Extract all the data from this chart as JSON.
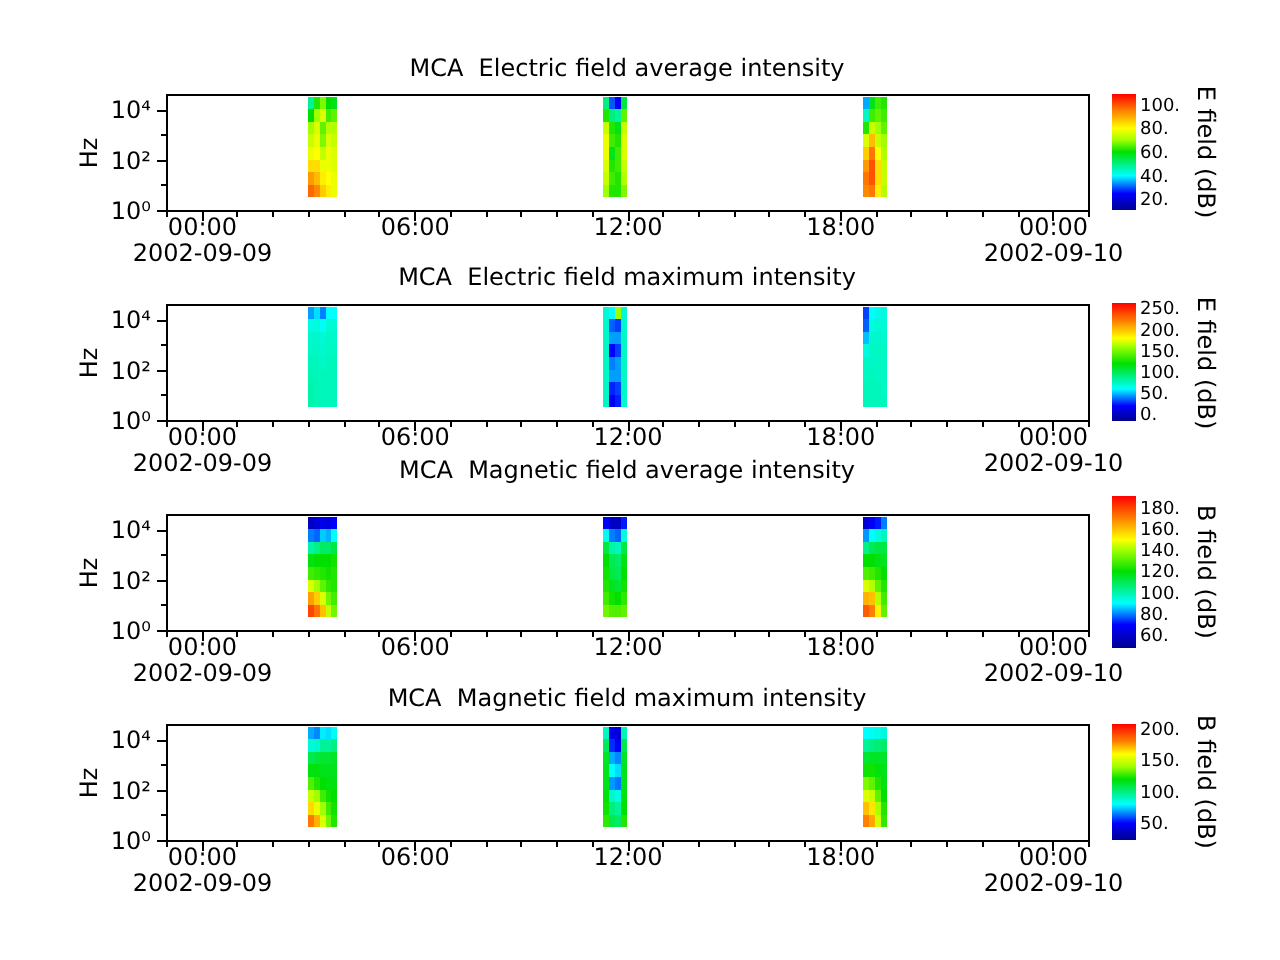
{
  "chart_data": [
    {
      "type": "scatter",
      "title": "MCA  Electric field average intensity",
      "ylabel": "Hz",
      "clabel": "E field (dB)",
      "log": "y",
      "marker": "square",
      "x": [
        "2002-09-09T03:05",
        "2002-09-09T03:15",
        "2002-09-09T03:25",
        "2002-09-09T03:35",
        "2002-09-09T03:45",
        "2002-09-09T11:25",
        "2002-09-09T11:35",
        "2002-09-09T11:45",
        "2002-09-09T11:55",
        "2002-09-09T18:45",
        "2002-09-09T18:55",
        "2002-09-09T19:05",
        "2002-09-09T19:15",
        "2002-09-09T03:05",
        "2002-09-09T03:15",
        "2002-09-09T03:25",
        "2002-09-09T03:35",
        "2002-09-09T03:45",
        "2002-09-09T11:25",
        "2002-09-09T11:35",
        "2002-09-09T11:45",
        "2002-09-09T11:55",
        "2002-09-09T18:45",
        "2002-09-09T18:55",
        "2002-09-09T19:05",
        "2002-09-09T19:15",
        "2002-09-09T03:05",
        "2002-09-09T03:15",
        "2002-09-09T03:25",
        "2002-09-09T03:35",
        "2002-09-09T03:45",
        "2002-09-09T11:25",
        "2002-09-09T11:35",
        "2002-09-09T11:45",
        "2002-09-09T11:55",
        "2002-09-09T18:45",
        "2002-09-09T18:55",
        "2002-09-09T19:05",
        "2002-09-09T19:15",
        "2002-09-09T03:05",
        "2002-09-09T03:15",
        "2002-09-09T03:25",
        "2002-09-09T03:35",
        "2002-09-09T03:45",
        "2002-09-09T11:25",
        "2002-09-09T11:35",
        "2002-09-09T11:45",
        "2002-09-09T11:55",
        "2002-09-09T18:45",
        "2002-09-09T18:55",
        "2002-09-09T19:05",
        "2002-09-09T19:15",
        "2002-09-09T03:05",
        "2002-09-09T03:15",
        "2002-09-09T03:25",
        "2002-09-09T03:35",
        "2002-09-09T03:45",
        "2002-09-09T11:25",
        "2002-09-09T11:35",
        "2002-09-09T11:45",
        "2002-09-09T11:55",
        "2002-09-09T18:45",
        "2002-09-09T18:55",
        "2002-09-09T19:05",
        "2002-09-09T19:15",
        "2002-09-09T03:05",
        "2002-09-09T03:15",
        "2002-09-09T03:25",
        "2002-09-09T03:35",
        "2002-09-09T03:45",
        "2002-09-09T11:25",
        "2002-09-09T11:35",
        "2002-09-09T11:45",
        "2002-09-09T11:55",
        "2002-09-09T18:45",
        "2002-09-09T18:55",
        "2002-09-09T19:05",
        "2002-09-09T19:15",
        "2002-09-09T03:05",
        "2002-09-09T03:15",
        "2002-09-09T03:25",
        "2002-09-09T03:35",
        "2002-09-09T03:45",
        "2002-09-09T11:25",
        "2002-09-09T11:35",
        "2002-09-09T11:45",
        "2002-09-09T11:55",
        "2002-09-09T18:45",
        "2002-09-09T18:55",
        "2002-09-09T19:05",
        "2002-09-09T19:15",
        "2002-09-09T03:05",
        "2002-09-09T03:15",
        "2002-09-09T03:25",
        "2002-09-09T03:35",
        "2002-09-09T03:45",
        "2002-09-09T11:25",
        "2002-09-09T11:35",
        "2002-09-09T11:45",
        "2002-09-09T11:55",
        "2002-09-09T18:45",
        "2002-09-09T18:55",
        "2002-09-09T19:05",
        "2002-09-09T19:15"
      ],
      "values": [
        17800,
        17800,
        17800,
        17800,
        17800,
        17800,
        17800,
        17800,
        17800,
        17800,
        17800,
        17800,
        17800,
        5620,
        5620,
        5620,
        5620,
        5620,
        5620,
        5620,
        5620,
        5620,
        5620,
        5620,
        5620,
        5620,
        1780,
        1780,
        1780,
        1780,
        1780,
        1780,
        1780,
        1780,
        1780,
        1780,
        1780,
        1780,
        1780,
        562,
        562,
        562,
        562,
        562,
        562,
        562,
        562,
        562,
        562,
        562,
        562,
        562,
        178,
        178,
        178,
        178,
        178,
        178,
        178,
        178,
        178,
        178,
        178,
        178,
        178,
        56.2,
        56.2,
        56.2,
        56.2,
        56.2,
        56.2,
        56.2,
        56.2,
        56.2,
        56.2,
        56.2,
        56.2,
        56.2,
        17.8,
        17.8,
        17.8,
        17.8,
        17.8,
        17.8,
        17.8,
        17.8,
        17.8,
        17.8,
        17.8,
        17.8,
        17.8,
        5.62,
        5.62,
        5.62,
        5.62,
        5.62,
        5.62,
        5.62,
        5.62,
        5.62,
        5.62,
        5.62,
        5.62,
        5.62
      ],
      "cvalues": [
        48,
        62,
        68,
        60,
        58,
        50,
        30,
        25,
        55,
        35,
        58,
        64,
        62,
        60,
        70,
        76,
        64,
        66,
        62,
        50,
        48,
        66,
        45,
        64,
        66,
        64,
        70,
        76,
        66,
        72,
        72,
        74,
        62,
        58,
        74,
        62,
        74,
        70,
        66,
        74,
        78,
        68,
        76,
        74,
        78,
        64,
        62,
        76,
        76,
        88,
        74,
        70,
        78,
        80,
        74,
        78,
        76,
        78,
        58,
        64,
        76,
        86,
        96,
        80,
        72,
        84,
        84,
        78,
        78,
        76,
        76,
        62,
        64,
        74,
        92,
        100,
        84,
        74,
        92,
        88,
        82,
        80,
        78,
        74,
        64,
        62,
        72,
        96,
        100,
        84,
        74,
        98,
        94,
        86,
        82,
        78,
        70,
        62,
        62,
        68,
        94,
        96,
        82,
        72
      ],
      "clim": [
        11,
        109
      ],
      "cticks": [
        {
          "value": 20,
          "label": "20."
        },
        {
          "value": 40,
          "label": "40."
        },
        {
          "value": 60,
          "label": "60."
        },
        {
          "value": 80,
          "label": "80."
        },
        {
          "value": 100,
          "label": "100."
        }
      ],
      "xlim": [
        "2002-09-08T23:00",
        "2002-09-10T01:00"
      ],
      "xticks": [
        {
          "value": "2002-09-08T23:00",
          "label": null
        },
        {
          "value": "2002-09-09T00:00",
          "label": "00:00\n2002-09-09"
        },
        {
          "value": "2002-09-09T01:00",
          "label": null
        },
        {
          "value": "2002-09-09T02:00",
          "label": null
        },
        {
          "value": "2002-09-09T03:00",
          "label": null
        },
        {
          "value": "2002-09-09T04:00",
          "label": null
        },
        {
          "value": "2002-09-09T05:00",
          "label": null
        },
        {
          "value": "2002-09-09T06:00",
          "label": "06:00"
        },
        {
          "value": "2002-09-09T07:00",
          "label": null
        },
        {
          "value": "2002-09-09T08:00",
          "label": null
        },
        {
          "value": "2002-09-09T09:00",
          "label": null
        },
        {
          "value": "2002-09-09T10:00",
          "label": null
        },
        {
          "value": "2002-09-09T11:00",
          "label": null
        },
        {
          "value": "2002-09-09T12:00",
          "label": "12:00"
        },
        {
          "value": "2002-09-09T13:00",
          "label": null
        },
        {
          "value": "2002-09-09T14:00",
          "label": null
        },
        {
          "value": "2002-09-09T15:00",
          "label": null
        },
        {
          "value": "2002-09-09T16:00",
          "label": null
        },
        {
          "value": "2002-09-09T17:00",
          "label": null
        },
        {
          "value": "2002-09-09T18:00",
          "label": "18:00"
        },
        {
          "value": "2002-09-09T19:00",
          "label": null
        },
        {
          "value": "2002-09-09T20:00",
          "label": null
        },
        {
          "value": "2002-09-09T21:00",
          "label": null
        },
        {
          "value": "2002-09-09T22:00",
          "label": null
        },
        {
          "value": "2002-09-09T23:00",
          "label": null
        },
        {
          "value": "2002-09-10T00:00",
          "label": "00:00\n2002-09-10"
        },
        {
          "value": "2002-09-10T01:00",
          "label": null
        }
      ],
      "ylim": [
        1,
        40000
      ],
      "yticks": [
        {
          "value": 1,
          "label": "10⁰"
        },
        {
          "value": 10,
          "label": null
        },
        {
          "value": 100,
          "label": "10²"
        },
        {
          "value": 1000,
          "label": null
        },
        {
          "value": 10000,
          "label": "10⁴"
        }
      ]
    },
    {
      "type": "scatter",
      "title": "MCA  Electric field maximum intensity",
      "ylabel": "Hz",
      "clabel": "E field (dB)",
      "log": "y",
      "marker": "square",
      "x": [
        "2002-09-09T03:05",
        "2002-09-09T03:15",
        "2002-09-09T03:25",
        "2002-09-09T03:35",
        "2002-09-09T03:45",
        "2002-09-09T11:25",
        "2002-09-09T11:35",
        "2002-09-09T11:45",
        "2002-09-09T11:55",
        "2002-09-09T18:45",
        "2002-09-09T18:55",
        "2002-09-09T19:05",
        "2002-09-09T19:15",
        "2002-09-09T03:05",
        "2002-09-09T03:15",
        "2002-09-09T03:25",
        "2002-09-09T03:35",
        "2002-09-09T03:45",
        "2002-09-09T11:25",
        "2002-09-09T11:35",
        "2002-09-09T11:45",
        "2002-09-09T11:55",
        "2002-09-09T18:45",
        "2002-09-09T18:55",
        "2002-09-09T19:05",
        "2002-09-09T19:15",
        "2002-09-09T03:05",
        "2002-09-09T03:15",
        "2002-09-09T03:25",
        "2002-09-09T03:35",
        "2002-09-09T03:45",
        "2002-09-09T11:25",
        "2002-09-09T11:35",
        "2002-09-09T11:45",
        "2002-09-09T11:55",
        "2002-09-09T18:45",
        "2002-09-09T18:55",
        "2002-09-09T19:05",
        "2002-09-09T19:15",
        "2002-09-09T03:05",
        "2002-09-09T03:15",
        "2002-09-09T03:25",
        "2002-09-09T03:35",
        "2002-09-09T03:45",
        "2002-09-09T11:25",
        "2002-09-09T11:35",
        "2002-09-09T11:45",
        "2002-09-09T11:55",
        "2002-09-09T18:45",
        "2002-09-09T18:55",
        "2002-09-09T19:05",
        "2002-09-09T19:15",
        "2002-09-09T03:05",
        "2002-09-09T03:15",
        "2002-09-09T03:25",
        "2002-09-09T03:35",
        "2002-09-09T03:45",
        "2002-09-09T11:25",
        "2002-09-09T11:35",
        "2002-09-09T11:45",
        "2002-09-09T11:55",
        "2002-09-09T18:45",
        "2002-09-09T18:55",
        "2002-09-09T19:05",
        "2002-09-09T19:15",
        "2002-09-09T03:05",
        "2002-09-09T03:15",
        "2002-09-09T03:25",
        "2002-09-09T03:35",
        "2002-09-09T03:45",
        "2002-09-09T11:25",
        "2002-09-09T11:35",
        "2002-09-09T11:45",
        "2002-09-09T11:55",
        "2002-09-09T18:45",
        "2002-09-09T18:55",
        "2002-09-09T19:05",
        "2002-09-09T19:15",
        "2002-09-09T03:05",
        "2002-09-09T03:15",
        "2002-09-09T03:25",
        "2002-09-09T03:35",
        "2002-09-09T03:45",
        "2002-09-09T11:25",
        "2002-09-09T11:35",
        "2002-09-09T11:45",
        "2002-09-09T11:55",
        "2002-09-09T18:45",
        "2002-09-09T18:55",
        "2002-09-09T19:05",
        "2002-09-09T19:15",
        "2002-09-09T03:05",
        "2002-09-09T03:15",
        "2002-09-09T03:25",
        "2002-09-09T03:35",
        "2002-09-09T03:45",
        "2002-09-09T11:25",
        "2002-09-09T11:35",
        "2002-09-09T11:45",
        "2002-09-09T11:55",
        "2002-09-09T18:45",
        "2002-09-09T18:55",
        "2002-09-09T19:05",
        "2002-09-09T19:15"
      ],
      "values": [
        17800,
        17800,
        17800,
        17800,
        17800,
        17800,
        17800,
        17800,
        17800,
        17800,
        17800,
        17800,
        17800,
        5620,
        5620,
        5620,
        5620,
        5620,
        5620,
        5620,
        5620,
        5620,
        5620,
        5620,
        5620,
        5620,
        1780,
        1780,
        1780,
        1780,
        1780,
        1780,
        1780,
        1780,
        1780,
        1780,
        1780,
        1780,
        1780,
        562,
        562,
        562,
        562,
        562,
        562,
        562,
        562,
        562,
        562,
        562,
        562,
        562,
        178,
        178,
        178,
        178,
        178,
        178,
        178,
        178,
        178,
        178,
        178,
        178,
        178,
        56.2,
        56.2,
        56.2,
        56.2,
        56.2,
        56.2,
        56.2,
        56.2,
        56.2,
        56.2,
        56.2,
        56.2,
        56.2,
        17.8,
        17.8,
        17.8,
        17.8,
        17.8,
        17.8,
        17.8,
        17.8,
        17.8,
        17.8,
        17.8,
        17.8,
        17.8,
        5.62,
        5.62,
        5.62,
        5.62,
        5.62,
        5.62,
        5.62,
        5.62,
        5.62,
        5.62,
        5.62,
        5.62,
        5.62
      ],
      "cvalues": [
        45,
        55,
        40,
        60,
        60,
        70,
        60,
        160,
        70,
        30,
        60,
        66,
        68,
        66,
        68,
        62,
        70,
        70,
        72,
        35,
        30,
        72,
        35,
        68,
        70,
        70,
        72,
        72,
        70,
        74,
        72,
        74,
        45,
        45,
        74,
        50,
        72,
        72,
        72,
        74,
        74,
        72,
        74,
        74,
        74,
        20,
        30,
        74,
        68,
        74,
        74,
        74,
        76,
        76,
        74,
        76,
        76,
        74,
        40,
        45,
        74,
        74,
        74,
        74,
        74,
        78,
        76,
        76,
        76,
        76,
        74,
        45,
        45,
        74,
        74,
        76,
        74,
        74,
        80,
        78,
        76,
        76,
        76,
        74,
        25,
        30,
        74,
        76,
        76,
        76,
        74,
        80,
        78,
        76,
        76,
        76,
        74,
        15,
        25,
        72,
        76,
        76,
        76,
        76
      ],
      "clim": [
        -16,
        263
      ],
      "cticks": [
        {
          "value": 0,
          "label": "0."
        },
        {
          "value": 50,
          "label": "50."
        },
        {
          "value": 100,
          "label": "100."
        },
        {
          "value": 150,
          "label": "150."
        },
        {
          "value": 200,
          "label": "200."
        },
        {
          "value": 250,
          "label": "250."
        }
      ],
      "xlim": [
        "2002-09-08T23:00",
        "2002-09-10T01:00"
      ],
      "xticks": [
        {
          "value": "2002-09-08T23:00",
          "label": null
        },
        {
          "value": "2002-09-09T00:00",
          "label": "00:00\n2002-09-09"
        },
        {
          "value": "2002-09-09T01:00",
          "label": null
        },
        {
          "value": "2002-09-09T02:00",
          "label": null
        },
        {
          "value": "2002-09-09T03:00",
          "label": null
        },
        {
          "value": "2002-09-09T04:00",
          "label": null
        },
        {
          "value": "2002-09-09T05:00",
          "label": null
        },
        {
          "value": "2002-09-09T06:00",
          "label": "06:00"
        },
        {
          "value": "2002-09-09T07:00",
          "label": null
        },
        {
          "value": "2002-09-09T08:00",
          "label": null
        },
        {
          "value": "2002-09-09T09:00",
          "label": null
        },
        {
          "value": "2002-09-09T10:00",
          "label": null
        },
        {
          "value": "2002-09-09T11:00",
          "label": null
        },
        {
          "value": "2002-09-09T12:00",
          "label": "12:00"
        },
        {
          "value": "2002-09-09T13:00",
          "label": null
        },
        {
          "value": "2002-09-09T14:00",
          "label": null
        },
        {
          "value": "2002-09-09T15:00",
          "label": null
        },
        {
          "value": "2002-09-09T16:00",
          "label": null
        },
        {
          "value": "2002-09-09T17:00",
          "label": null
        },
        {
          "value": "2002-09-09T18:00",
          "label": "18:00"
        },
        {
          "value": "2002-09-09T19:00",
          "label": null
        },
        {
          "value": "2002-09-09T20:00",
          "label": null
        },
        {
          "value": "2002-09-09T21:00",
          "label": null
        },
        {
          "value": "2002-09-09T22:00",
          "label": null
        },
        {
          "value": "2002-09-09T23:00",
          "label": null
        },
        {
          "value": "2002-09-10T00:00",
          "label": "00:00\n2002-09-10"
        },
        {
          "value": "2002-09-10T01:00",
          "label": null
        }
      ],
      "ylim": [
        1,
        40000
      ],
      "yticks": [
        {
          "value": 1,
          "label": "10⁰"
        },
        {
          "value": 10,
          "label": null
        },
        {
          "value": 100,
          "label": "10²"
        },
        {
          "value": 1000,
          "label": null
        },
        {
          "value": 10000,
          "label": "10⁴"
        }
      ]
    },
    {
      "type": "scatter",
      "title": "MCA  Magnetic field average intensity",
      "ylabel": "Hz",
      "clabel": "B field (dB)",
      "log": "y",
      "marker": "square",
      "x": [
        "2002-09-09T03:05",
        "2002-09-09T03:15",
        "2002-09-09T03:25",
        "2002-09-09T03:35",
        "2002-09-09T03:45",
        "2002-09-09T11:25",
        "2002-09-09T11:35",
        "2002-09-09T11:45",
        "2002-09-09T11:55",
        "2002-09-09T18:45",
        "2002-09-09T18:55",
        "2002-09-09T19:05",
        "2002-09-09T19:15",
        "2002-09-09T03:05",
        "2002-09-09T03:15",
        "2002-09-09T03:25",
        "2002-09-09T03:35",
        "2002-09-09T03:45",
        "2002-09-09T11:25",
        "2002-09-09T11:35",
        "2002-09-09T11:45",
        "2002-09-09T11:55",
        "2002-09-09T18:45",
        "2002-09-09T18:55",
        "2002-09-09T19:05",
        "2002-09-09T19:15",
        "2002-09-09T03:05",
        "2002-09-09T03:15",
        "2002-09-09T03:25",
        "2002-09-09T03:35",
        "2002-09-09T03:45",
        "2002-09-09T11:25",
        "2002-09-09T11:35",
        "2002-09-09T11:45",
        "2002-09-09T11:55",
        "2002-09-09T18:45",
        "2002-09-09T18:55",
        "2002-09-09T19:05",
        "2002-09-09T19:15",
        "2002-09-09T03:05",
        "2002-09-09T03:15",
        "2002-09-09T03:25",
        "2002-09-09T03:35",
        "2002-09-09T03:45",
        "2002-09-09T11:25",
        "2002-09-09T11:35",
        "2002-09-09T11:45",
        "2002-09-09T11:55",
        "2002-09-09T18:45",
        "2002-09-09T18:55",
        "2002-09-09T19:05",
        "2002-09-09T19:15",
        "2002-09-09T03:05",
        "2002-09-09T03:15",
        "2002-09-09T03:25",
        "2002-09-09T03:35",
        "2002-09-09T03:45",
        "2002-09-09T11:25",
        "2002-09-09T11:35",
        "2002-09-09T11:45",
        "2002-09-09T11:55",
        "2002-09-09T18:45",
        "2002-09-09T18:55",
        "2002-09-09T19:05",
        "2002-09-09T19:15",
        "2002-09-09T03:05",
        "2002-09-09T03:15",
        "2002-09-09T03:25",
        "2002-09-09T03:35",
        "2002-09-09T03:45",
        "2002-09-09T11:25",
        "2002-09-09T11:35",
        "2002-09-09T11:45",
        "2002-09-09T11:55",
        "2002-09-09T18:45",
        "2002-09-09T18:55",
        "2002-09-09T19:05",
        "2002-09-09T19:15",
        "2002-09-09T03:05",
        "2002-09-09T03:15",
        "2002-09-09T03:25",
        "2002-09-09T03:35",
        "2002-09-09T03:45",
        "2002-09-09T11:25",
        "2002-09-09T11:35",
        "2002-09-09T11:45",
        "2002-09-09T11:55",
        "2002-09-09T18:45",
        "2002-09-09T18:55",
        "2002-09-09T19:05",
        "2002-09-09T19:15",
        "2002-09-09T03:05",
        "2002-09-09T03:15",
        "2002-09-09T03:25",
        "2002-09-09T03:35",
        "2002-09-09T03:45",
        "2002-09-09T11:25",
        "2002-09-09T11:35",
        "2002-09-09T11:45",
        "2002-09-09T11:55",
        "2002-09-09T18:45",
        "2002-09-09T18:55",
        "2002-09-09T19:05",
        "2002-09-09T19:15"
      ],
      "values": [
        17800,
        17800,
        17800,
        17800,
        17800,
        17800,
        17800,
        17800,
        17800,
        17800,
        17800,
        17800,
        17800,
        5620,
        5620,
        5620,
        5620,
        5620,
        5620,
        5620,
        5620,
        5620,
        5620,
        5620,
        5620,
        5620,
        1780,
        1780,
        1780,
        1780,
        1780,
        1780,
        1780,
        1780,
        1780,
        1780,
        1780,
        1780,
        1780,
        562,
        562,
        562,
        562,
        562,
        562,
        562,
        562,
        562,
        562,
        562,
        562,
        562,
        178,
        178,
        178,
        178,
        178,
        178,
        178,
        178,
        178,
        178,
        178,
        178,
        178,
        56.2,
        56.2,
        56.2,
        56.2,
        56.2,
        56.2,
        56.2,
        56.2,
        56.2,
        56.2,
        56.2,
        56.2,
        56.2,
        17.8,
        17.8,
        17.8,
        17.8,
        17.8,
        17.8,
        17.8,
        17.8,
        17.8,
        17.8,
        17.8,
        17.8,
        17.8,
        5.62,
        5.62,
        5.62,
        5.62,
        5.62,
        5.62,
        5.62,
        5.62,
        5.62,
        5.62,
        5.62,
        5.62,
        5.62
      ],
      "cvalues": [
        58,
        62,
        66,
        64,
        70,
        70,
        58,
        58,
        72,
        62,
        70,
        72,
        80,
        80,
        78,
        86,
        84,
        90,
        92,
        80,
        78,
        94,
        82,
        90,
        94,
        98,
        100,
        104,
        108,
        108,
        112,
        112,
        100,
        98,
        112,
        104,
        110,
        112,
        112,
        118,
        120,
        120,
        120,
        122,
        120,
        110,
        108,
        118,
        120,
        120,
        118,
        116,
        128,
        126,
        124,
        122,
        124,
        122,
        112,
        110,
        120,
        130,
        128,
        124,
        120,
        146,
        140,
        132,
        126,
        124,
        124,
        116,
        114,
        122,
        146,
        142,
        132,
        124,
        165,
        158,
        146,
        134,
        128,
        128,
        122,
        120,
        126,
        162,
        160,
        142,
        128,
        180,
        172,
        160,
        144,
        134,
        134,
        130,
        130,
        132,
        176,
        170,
        152,
        132
      ],
      "clim": [
        48,
        191
      ],
      "cticks": [
        {
          "value": 60,
          "label": "60."
        },
        {
          "value": 80,
          "label": "80."
        },
        {
          "value": 100,
          "label": "100."
        },
        {
          "value": 120,
          "label": "120."
        },
        {
          "value": 140,
          "label": "140."
        },
        {
          "value": 160,
          "label": "160."
        },
        {
          "value": 180,
          "label": "180."
        }
      ],
      "xlim": [
        "2002-09-08T23:00",
        "2002-09-10T01:00"
      ],
      "xticks": [
        {
          "value": "2002-09-08T23:00",
          "label": null
        },
        {
          "value": "2002-09-09T00:00",
          "label": "00:00\n2002-09-09"
        },
        {
          "value": "2002-09-09T01:00",
          "label": null
        },
        {
          "value": "2002-09-09T02:00",
          "label": null
        },
        {
          "value": "2002-09-09T03:00",
          "label": null
        },
        {
          "value": "2002-09-09T04:00",
          "label": null
        },
        {
          "value": "2002-09-09T05:00",
          "label": null
        },
        {
          "value": "2002-09-09T06:00",
          "label": "06:00"
        },
        {
          "value": "2002-09-09T07:00",
          "label": null
        },
        {
          "value": "2002-09-09T08:00",
          "label": null
        },
        {
          "value": "2002-09-09T09:00",
          "label": null
        },
        {
          "value": "2002-09-09T10:00",
          "label": null
        },
        {
          "value": "2002-09-09T11:00",
          "label": null
        },
        {
          "value": "2002-09-09T12:00",
          "label": "12:00"
        },
        {
          "value": "2002-09-09T13:00",
          "label": null
        },
        {
          "value": "2002-09-09T14:00",
          "label": null
        },
        {
          "value": "2002-09-09T15:00",
          "label": null
        },
        {
          "value": "2002-09-09T16:00",
          "label": null
        },
        {
          "value": "2002-09-09T17:00",
          "label": null
        },
        {
          "value": "2002-09-09T18:00",
          "label": "18:00"
        },
        {
          "value": "2002-09-09T19:00",
          "label": null
        },
        {
          "value": "2002-09-09T20:00",
          "label": null
        },
        {
          "value": "2002-09-09T21:00",
          "label": null
        },
        {
          "value": "2002-09-09T22:00",
          "label": null
        },
        {
          "value": "2002-09-09T23:00",
          "label": null
        },
        {
          "value": "2002-09-10T00:00",
          "label": "00:00\n2002-09-10"
        },
        {
          "value": "2002-09-10T01:00",
          "label": null
        }
      ],
      "ylim": [
        1,
        40000
      ],
      "yticks": [
        {
          "value": 1,
          "label": "10⁰"
        },
        {
          "value": 10,
          "label": null
        },
        {
          "value": 100,
          "label": "10²"
        },
        {
          "value": 1000,
          "label": null
        },
        {
          "value": 10000,
          "label": "10⁴"
        }
      ]
    },
    {
      "type": "scatter",
      "title": "MCA  Magnetic field maximum intensity",
      "ylabel": "Hz",
      "clabel": "B field (dB)",
      "log": "y",
      "marker": "square",
      "x": [
        "2002-09-09T03:05",
        "2002-09-09T03:15",
        "2002-09-09T03:25",
        "2002-09-09T03:35",
        "2002-09-09T03:45",
        "2002-09-09T11:25",
        "2002-09-09T11:35",
        "2002-09-09T11:45",
        "2002-09-09T11:55",
        "2002-09-09T18:45",
        "2002-09-09T18:55",
        "2002-09-09T19:05",
        "2002-09-09T19:15",
        "2002-09-09T03:05",
        "2002-09-09T03:15",
        "2002-09-09T03:25",
        "2002-09-09T03:35",
        "2002-09-09T03:45",
        "2002-09-09T11:25",
        "2002-09-09T11:35",
        "2002-09-09T11:45",
        "2002-09-09T11:55",
        "2002-09-09T18:45",
        "2002-09-09T18:55",
        "2002-09-09T19:05",
        "2002-09-09T19:15",
        "2002-09-09T03:05",
        "2002-09-09T03:15",
        "2002-09-09T03:25",
        "2002-09-09T03:35",
        "2002-09-09T03:45",
        "2002-09-09T11:25",
        "2002-09-09T11:35",
        "2002-09-09T11:45",
        "2002-09-09T11:55",
        "2002-09-09T18:45",
        "2002-09-09T18:55",
        "2002-09-09T19:05",
        "2002-09-09T19:15",
        "2002-09-09T03:05",
        "2002-09-09T03:15",
        "2002-09-09T03:25",
        "2002-09-09T03:35",
        "2002-09-09T03:45",
        "2002-09-09T11:25",
        "2002-09-09T11:35",
        "2002-09-09T11:45",
        "2002-09-09T11:55",
        "2002-09-09T18:45",
        "2002-09-09T18:55",
        "2002-09-09T19:05",
        "2002-09-09T19:15",
        "2002-09-09T03:05",
        "2002-09-09T03:15",
        "2002-09-09T03:25",
        "2002-09-09T03:35",
        "2002-09-09T03:45",
        "2002-09-09T11:25",
        "2002-09-09T11:35",
        "2002-09-09T11:45",
        "2002-09-09T11:55",
        "2002-09-09T18:45",
        "2002-09-09T18:55",
        "2002-09-09T19:05",
        "2002-09-09T19:15",
        "2002-09-09T03:05",
        "2002-09-09T03:15",
        "2002-09-09T03:25",
        "2002-09-09T03:35",
        "2002-09-09T03:45",
        "2002-09-09T11:25",
        "2002-09-09T11:35",
        "2002-09-09T11:45",
        "2002-09-09T11:55",
        "2002-09-09T18:45",
        "2002-09-09T18:55",
        "2002-09-09T19:05",
        "2002-09-09T19:15",
        "2002-09-09T03:05",
        "2002-09-09T03:15",
        "2002-09-09T03:25",
        "2002-09-09T03:35",
        "2002-09-09T03:45",
        "2002-09-09T11:25",
        "2002-09-09T11:35",
        "2002-09-09T11:45",
        "2002-09-09T11:55",
        "2002-09-09T18:45",
        "2002-09-09T18:55",
        "2002-09-09T19:05",
        "2002-09-09T19:15",
        "2002-09-09T03:05",
        "2002-09-09T03:15",
        "2002-09-09T03:25",
        "2002-09-09T03:35",
        "2002-09-09T03:45",
        "2002-09-09T11:25",
        "2002-09-09T11:35",
        "2002-09-09T11:45",
        "2002-09-09T11:55",
        "2002-09-09T18:45",
        "2002-09-09T18:55",
        "2002-09-09T19:05",
        "2002-09-09T19:15"
      ],
      "values": [
        17800,
        17800,
        17800,
        17800,
        17800,
        17800,
        17800,
        17800,
        17800,
        17800,
        17800,
        17800,
        17800,
        5620,
        5620,
        5620,
        5620,
        5620,
        5620,
        5620,
        5620,
        5620,
        5620,
        5620,
        5620,
        5620,
        1780,
        1780,
        1780,
        1780,
        1780,
        1780,
        1780,
        1780,
        1780,
        1780,
        1780,
        1780,
        1780,
        562,
        562,
        562,
        562,
        562,
        562,
        562,
        562,
        562,
        562,
        562,
        562,
        562,
        178,
        178,
        178,
        178,
        178,
        178,
        178,
        178,
        178,
        178,
        178,
        178,
        178,
        56.2,
        56.2,
        56.2,
        56.2,
        56.2,
        56.2,
        56.2,
        56.2,
        56.2,
        56.2,
        56.2,
        56.2,
        56.2,
        17.8,
        17.8,
        17.8,
        17.8,
        17.8,
        17.8,
        17.8,
        17.8,
        17.8,
        17.8,
        17.8,
        17.8,
        17.8,
        5.62,
        5.62,
        5.62,
        5.62,
        5.62,
        5.62,
        5.62,
        5.62,
        5.62,
        5.62,
        5.62,
        5.62,
        5.62
      ],
      "cvalues": [
        70,
        66,
        78,
        76,
        82,
        90,
        45,
        40,
        92,
        80,
        82,
        84,
        86,
        86,
        88,
        96,
        96,
        100,
        106,
        55,
        50,
        108,
        96,
        100,
        102,
        104,
        108,
        110,
        112,
        112,
        114,
        114,
        70,
        66,
        114,
        112,
        114,
        114,
        114,
        118,
        118,
        116,
        116,
        116,
        116,
        80,
        76,
        116,
        122,
        122,
        118,
        116,
        130,
        124,
        120,
        118,
        118,
        116,
        68,
        64,
        116,
        136,
        132,
        124,
        118,
        148,
        140,
        128,
        122,
        120,
        118,
        88,
        84,
        118,
        152,
        148,
        132,
        120,
        166,
        156,
        140,
        128,
        122,
        122,
        100,
        96,
        120,
        170,
        164,
        142,
        124,
        182,
        172,
        152,
        134,
        124,
        126,
        108,
        104,
        124,
        180,
        174,
        150,
        126
      ],
      "clim": [
        23,
        208
      ],
      "cticks": [
        {
          "value": 50,
          "label": "50."
        },
        {
          "value": 100,
          "label": "100."
        },
        {
          "value": 150,
          "label": "150."
        },
        {
          "value": 200,
          "label": "200."
        }
      ],
      "xlim": [
        "2002-09-08T23:00",
        "2002-09-10T01:00"
      ],
      "xticks": [
        {
          "value": "2002-09-08T23:00",
          "label": null
        },
        {
          "value": "2002-09-09T00:00",
          "label": "00:00\n2002-09-09"
        },
        {
          "value": "2002-09-09T01:00",
          "label": null
        },
        {
          "value": "2002-09-09T02:00",
          "label": null
        },
        {
          "value": "2002-09-09T03:00",
          "label": null
        },
        {
          "value": "2002-09-09T04:00",
          "label": null
        },
        {
          "value": "2002-09-09T05:00",
          "label": null
        },
        {
          "value": "2002-09-09T06:00",
          "label": "06:00"
        },
        {
          "value": "2002-09-09T07:00",
          "label": null
        },
        {
          "value": "2002-09-09T08:00",
          "label": null
        },
        {
          "value": "2002-09-09T09:00",
          "label": null
        },
        {
          "value": "2002-09-09T10:00",
          "label": null
        },
        {
          "value": "2002-09-09T11:00",
          "label": null
        },
        {
          "value": "2002-09-09T12:00",
          "label": "12:00"
        },
        {
          "value": "2002-09-09T13:00",
          "label": null
        },
        {
          "value": "2002-09-09T14:00",
          "label": null
        },
        {
          "value": "2002-09-09T15:00",
          "label": null
        },
        {
          "value": "2002-09-09T16:00",
          "label": null
        },
        {
          "value": "2002-09-09T17:00",
          "label": null
        },
        {
          "value": "2002-09-09T18:00",
          "label": "18:00"
        },
        {
          "value": "2002-09-09T19:00",
          "label": null
        },
        {
          "value": "2002-09-09T20:00",
          "label": null
        },
        {
          "value": "2002-09-09T21:00",
          "label": null
        },
        {
          "value": "2002-09-09T22:00",
          "label": null
        },
        {
          "value": "2002-09-09T23:00",
          "label": null
        },
        {
          "value": "2002-09-10T00:00",
          "label": "00:00\n2002-09-10"
        },
        {
          "value": "2002-09-10T01:00",
          "label": null
        }
      ],
      "ylim": [
        1,
        40000
      ],
      "yticks": [
        {
          "value": 1,
          "label": "10⁰"
        },
        {
          "value": 10,
          "label": null
        },
        {
          "value": 100,
          "label": "10²"
        },
        {
          "value": 1000,
          "label": null
        },
        {
          "value": 10000,
          "label": "10⁴"
        }
      ]
    }
  ]
}
